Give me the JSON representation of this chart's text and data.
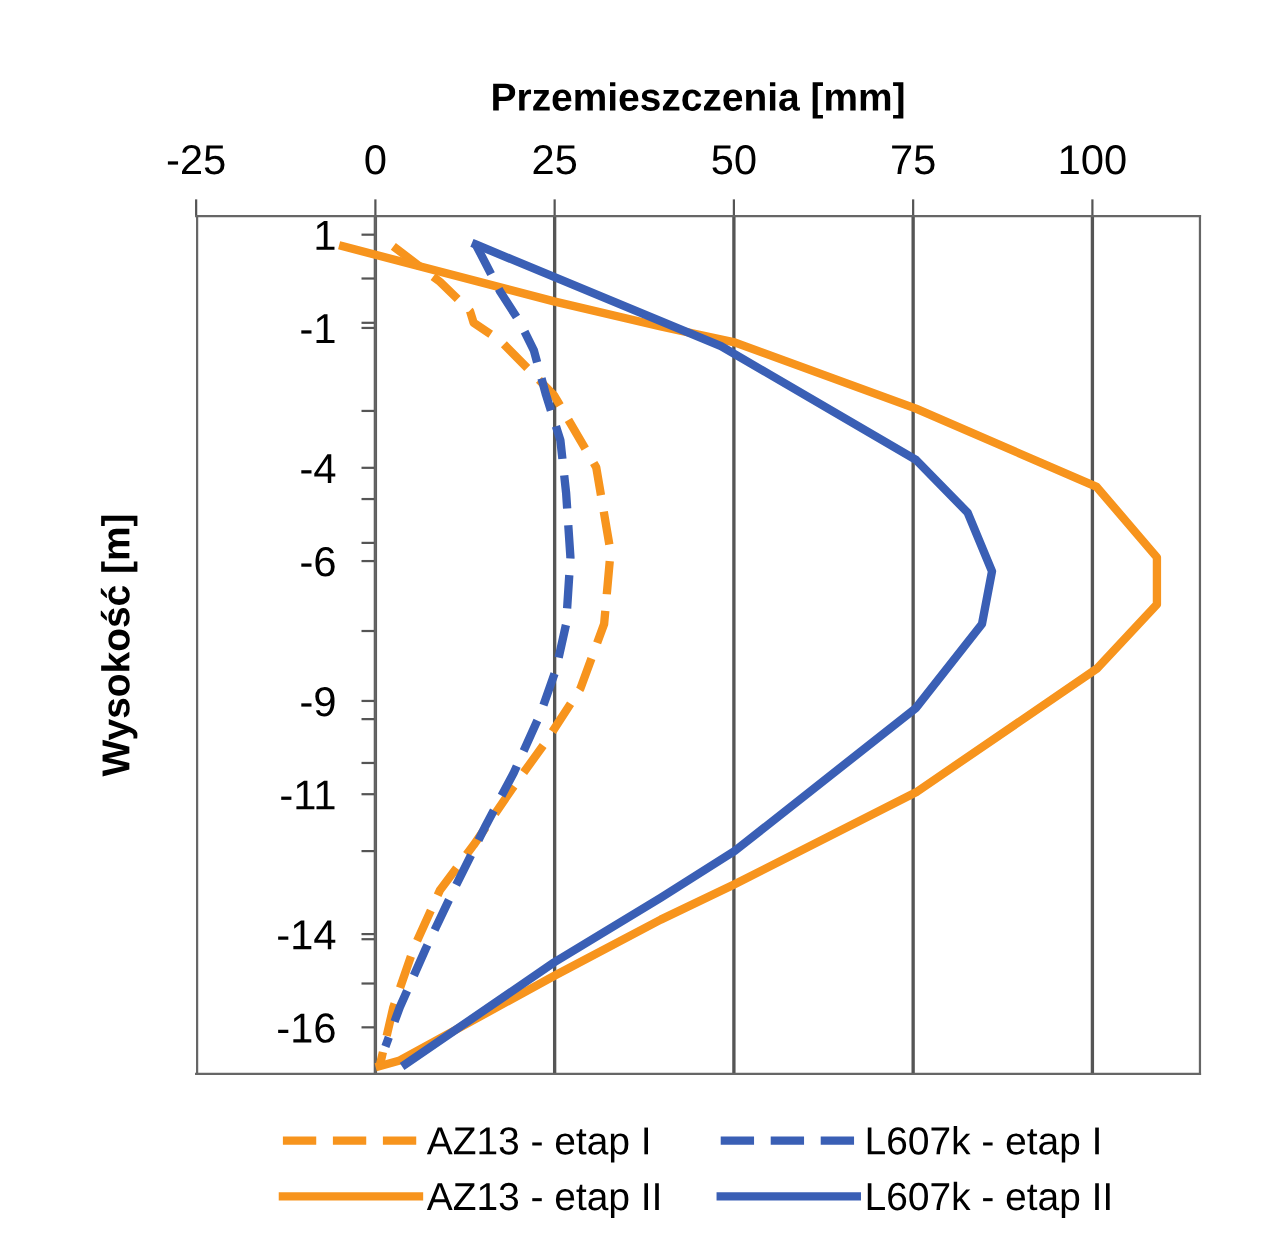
{
  "chart_data": {
    "type": "line",
    "xlabel": "Przemieszczenia [mm]",
    "ylabel": "Wysokość [m]",
    "xlim": [
      -25,
      115
    ],
    "xticks": [
      -25,
      0,
      25,
      50,
      75,
      100
    ],
    "ylim": [
      -17,
      1.4
    ],
    "yticks": [
      1,
      {
        "value": 0.06,
        "label": null
      },
      {
        "value": -0.89,
        "label": null
      },
      -1,
      {
        "value": -2.78,
        "label": null
      },
      -4,
      {
        "value": -4.67,
        "label": null
      },
      {
        "value": -5.61,
        "label": null
      },
      -6,
      {
        "value": -7.5,
        "label": null
      },
      -9,
      {
        "value": -9.39,
        "label": null
      },
      {
        "value": -10.33,
        "label": null
      },
      -11,
      {
        "value": -12.22,
        "label": null
      },
      -14,
      {
        "value": -14.11,
        "label": null
      },
      {
        "value": -15.06,
        "label": null
      },
      -16
    ],
    "grid": "x",
    "legend": "bottom",
    "marker": "none",
    "series": [
      {
        "name": "AZ13 - etap I",
        "color": "#f7941d",
        "line_style": "dashed",
        "x": [
          2.5,
          9.0,
          13.2,
          13.7,
          17.4,
          24.9,
          30.8,
          32.8,
          31.9,
          28.6,
          23.8,
          19.3,
          13.7,
          9.0,
          5.3,
          2.5,
          0.6
        ],
        "values": [
          0.75,
          -0.01,
          -0.64,
          -0.89,
          -1.27,
          -2.44,
          -3.99,
          -5.8,
          -7.35,
          -8.73,
          -9.87,
          -10.83,
          -12.09,
          -13.06,
          -14.32,
          -15.57,
          -16.83
        ]
      },
      {
        "name": "AZ13 - etap II",
        "color": "#f7941d",
        "line_style": "solid",
        "x": [
          -4.5,
          24.9,
          39.8,
          50.1,
          75.4,
          100.6,
          109.0,
          109.0,
          100.6,
          75.4,
          50.1,
          39.8,
          24.9,
          3.4,
          0.6
        ],
        "values": [
          0.75,
          -0.43,
          -0.97,
          -1.31,
          -2.73,
          -4.41,
          -5.92,
          -6.93,
          -8.31,
          -10.96,
          -12.93,
          -13.69,
          -14.9,
          -16.71,
          -16.83
        ]
      },
      {
        "name": "L607k - etap I",
        "color": "#3a5fb5",
        "line_style": "dashed",
        "x": [
          14.0,
          17.4,
          20.2,
          22.1,
          23.8,
          25.8,
          26.6,
          27.2,
          26.6,
          25.2,
          23.0,
          19.3,
          15.4,
          10.9,
          7.0,
          3.4,
          1.4
        ],
        "values": [
          0.79,
          -0.22,
          -0.89,
          -1.48,
          -2.44,
          -3.41,
          -4.54,
          -5.92,
          -7.35,
          -8.32,
          -9.28,
          -10.54,
          -11.67,
          -13.06,
          -14.32,
          -15.57,
          -16.41
        ]
      },
      {
        "name": "L607k - etap II",
        "color": "#3a5fb5",
        "line_style": "solid",
        "x": [
          14.0,
          48.2,
          75.4,
          82.6,
          86.0,
          84.6,
          75.4,
          50.1,
          39.8,
          24.9,
          4.2
        ],
        "values": [
          0.79,
          -1.39,
          -3.83,
          -4.96,
          -6.22,
          -7.35,
          -9.15,
          -12.22,
          -13.22,
          -14.61,
          -16.79
        ]
      }
    ]
  }
}
